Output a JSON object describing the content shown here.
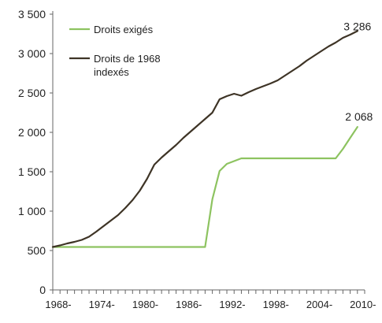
{
  "chart_data": {
    "type": "line",
    "title": "",
    "xlabel": "",
    "ylabel": "",
    "ylim": [
      0,
      3500
    ],
    "yticks": [
      0,
      500,
      1000,
      1500,
      2000,
      2500,
      3000,
      3500
    ],
    "ytick_labels": [
      "0",
      "500",
      "1 000",
      "1 500",
      "2 000",
      "2 500",
      "3 000",
      "3 500"
    ],
    "xlim": [
      1968,
      2011
    ],
    "xtick_positions": [
      1968,
      1974,
      1980,
      1986,
      1992,
      1998,
      2004,
      2010
    ],
    "xtick_labels": [
      "1968-",
      "1974-",
      "1980-",
      "1986-",
      "1992-",
      "1998-",
      "2004-",
      "2010-"
    ],
    "grid": false,
    "legend_position": "top-left",
    "series": [
      {
        "name": "Droits exigés",
        "color": "#8dc360",
        "end_label": "2 068",
        "x": [
          1968,
          1969,
          1970,
          1971,
          1972,
          1973,
          1974,
          1975,
          1976,
          1977,
          1978,
          1979,
          1980,
          1981,
          1982,
          1983,
          1984,
          1985,
          1986,
          1987,
          1988,
          1989,
          1990,
          1991,
          1992,
          1993,
          1994,
          1995,
          1996,
          1997,
          1998,
          1999,
          2000,
          2001,
          2002,
          2003,
          2004,
          2005,
          2006,
          2007,
          2008,
          2009,
          2010
        ],
        "y": [
          545,
          545,
          545,
          545,
          545,
          545,
          545,
          545,
          545,
          545,
          545,
          545,
          545,
          545,
          545,
          545,
          545,
          545,
          545,
          545,
          545,
          545,
          1150,
          1510,
          1600,
          1635,
          1670,
          1670,
          1670,
          1670,
          1670,
          1670,
          1670,
          1670,
          1670,
          1670,
          1670,
          1670,
          1670,
          1670,
          1790,
          1930,
          2068
        ]
      },
      {
        "name": "Droits de 1968 indexés",
        "color": "#3e3426",
        "end_label": "3 286",
        "x": [
          1968,
          1969,
          1970,
          1971,
          1972,
          1973,
          1974,
          1975,
          1976,
          1977,
          1978,
          1979,
          1980,
          1981,
          1982,
          1983,
          1984,
          1985,
          1986,
          1987,
          1988,
          1989,
          1990,
          1991,
          1992,
          1993,
          1994,
          1995,
          1996,
          1997,
          1998,
          1999,
          2000,
          2001,
          2002,
          2003,
          2004,
          2005,
          2006,
          2007,
          2008,
          2009,
          2010
        ],
        "y": [
          545,
          565,
          590,
          610,
          635,
          675,
          740,
          810,
          880,
          950,
          1040,
          1140,
          1260,
          1410,
          1590,
          1680,
          1760,
          1840,
          1930,
          2010,
          2090,
          2170,
          2250,
          2420,
          2460,
          2490,
          2465,
          2510,
          2550,
          2585,
          2620,
          2660,
          2720,
          2780,
          2840,
          2910,
          2970,
          3030,
          3090,
          3140,
          3200,
          3240,
          3286
        ]
      }
    ]
  }
}
